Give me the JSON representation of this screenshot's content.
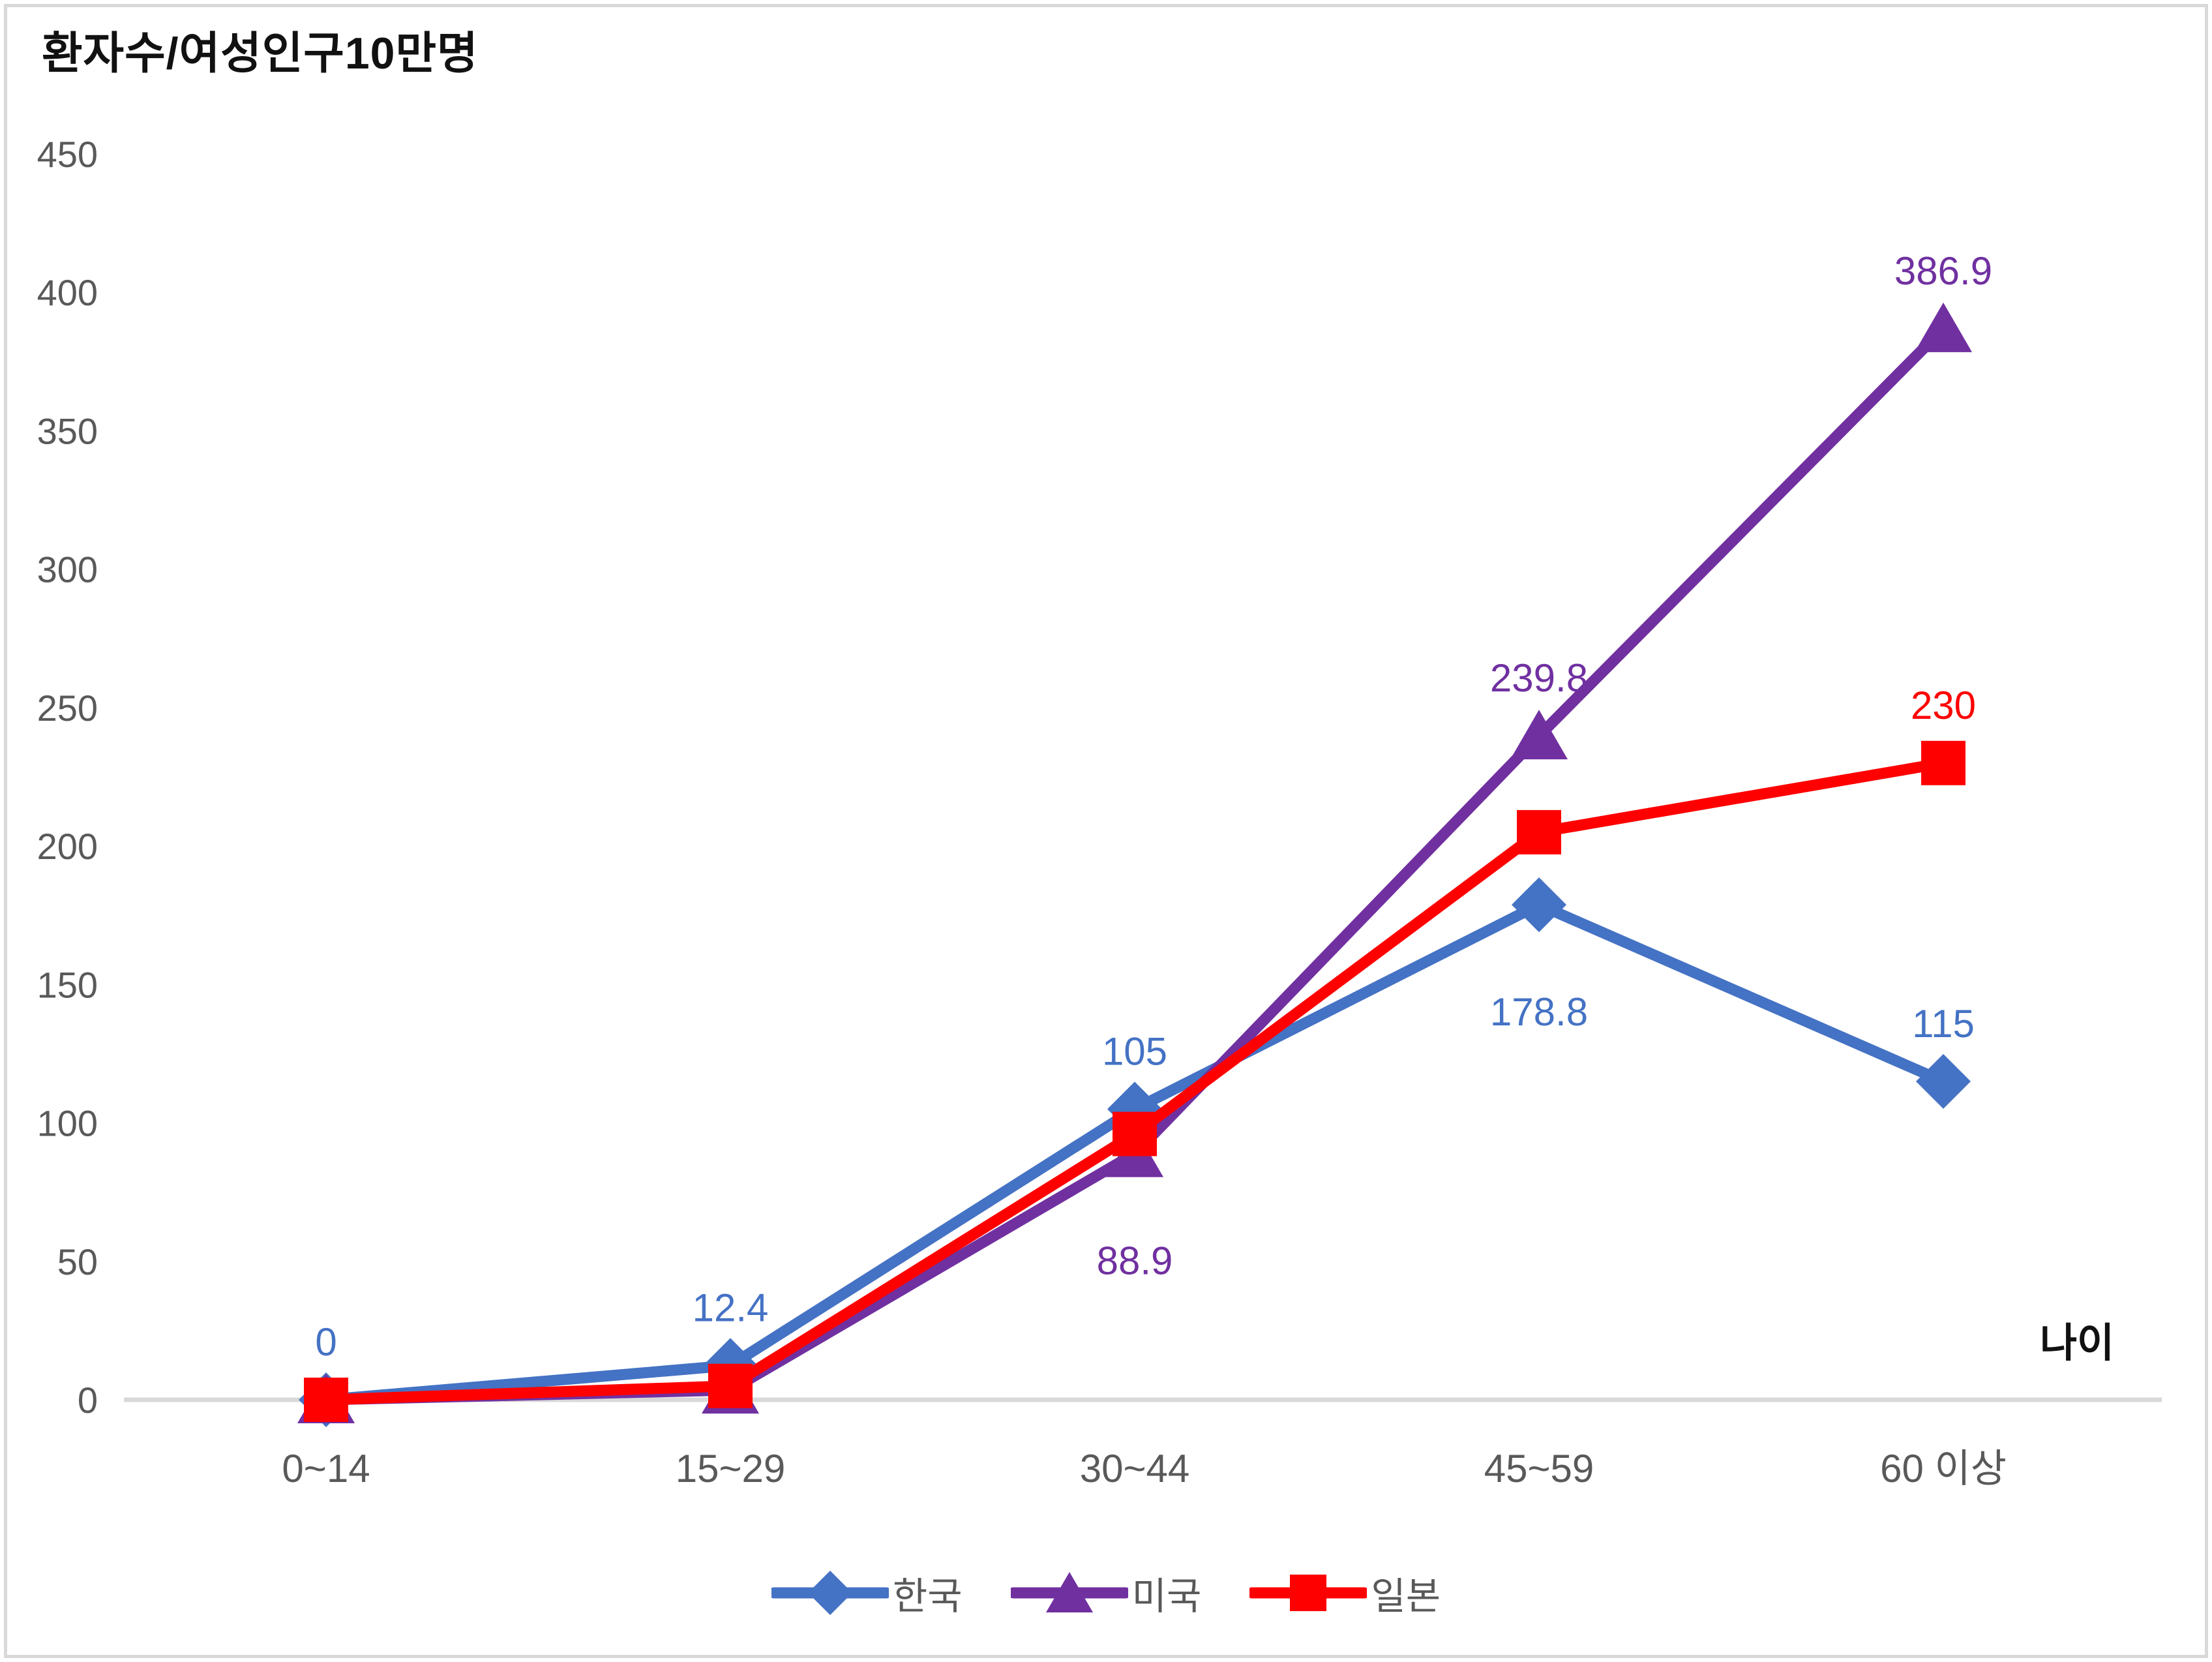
{
  "title": "환자수/여성인구10만명",
  "x_axis_label": "나이",
  "chart_data": {
    "type": "line",
    "categories": [
      "0~14",
      "15~29",
      "30~44",
      "45~59",
      "60 이상"
    ],
    "y_ticks": [
      0,
      50,
      100,
      150,
      200,
      250,
      300,
      350,
      400,
      450
    ],
    "ylim": [
      0,
      450
    ],
    "grid": false,
    "legend_position": "bottom",
    "axis_color": "#d9d9d9",
    "tick_label_color": "#595959",
    "series": [
      {
        "name": "한국",
        "color": "#4472c4",
        "marker": "diamond",
        "values": [
          0,
          12.4,
          105,
          178.8,
          115
        ],
        "data_labels": [
          "0",
          "12.4",
          "105",
          "178.8",
          "115"
        ],
        "label_positions": [
          "above",
          "above",
          "above",
          "below",
          "above"
        ]
      },
      {
        "name": "미국",
        "color": "#7030a0",
        "marker": "triangle",
        "values": [
          0,
          3.5,
          88.9,
          239.8,
          386.9
        ],
        "data_labels": [
          "",
          "",
          "88.9",
          "239.8",
          "386.9"
        ],
        "label_positions": [
          "",
          "",
          "below",
          "above",
          "above"
        ]
      },
      {
        "name": "일본",
        "color": "#ff0000",
        "marker": "square",
        "values": [
          0,
          5,
          96,
          205,
          230
        ],
        "data_labels": [
          "",
          "",
          "",
          "",
          "230"
        ],
        "label_positions": [
          "",
          "",
          "",
          "",
          "above"
        ]
      }
    ]
  }
}
